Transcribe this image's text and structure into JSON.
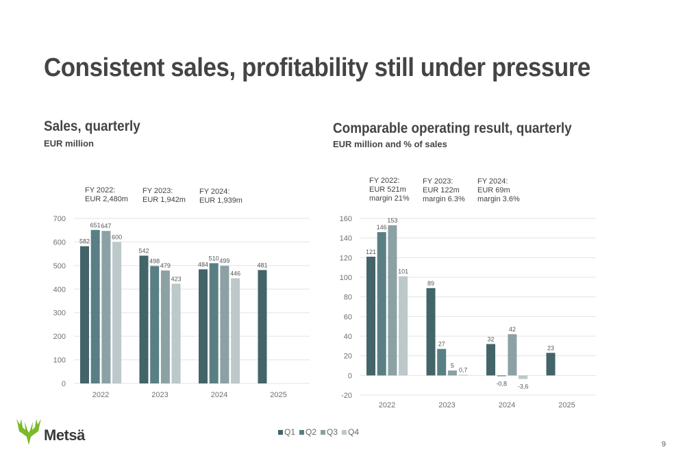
{
  "title": "Consistent sales, profitability still under pressure",
  "colors": {
    "Q1": "#436469",
    "Q2": "#597f84",
    "Q3": "#8ba1a4",
    "Q4": "#bcc8c9",
    "grid": "#e3e3e3"
  },
  "legend": [
    "Q1",
    "Q2",
    "Q3",
    "Q4"
  ],
  "logo": {
    "text": "Metsä",
    "icon": "elk-antler-icon"
  },
  "page_number": "9",
  "chart_data": [
    {
      "type": "bar",
      "title": "Sales, quarterly",
      "subtitle": "EUR million",
      "categories": [
        "2022",
        "2023",
        "2024",
        "2025"
      ],
      "series": [
        {
          "name": "Q1",
          "values": [
            582,
            542,
            484,
            481
          ]
        },
        {
          "name": "Q2",
          "values": [
            651,
            498,
            510,
            null
          ]
        },
        {
          "name": "Q3",
          "values": [
            647,
            479,
            499,
            null
          ]
        },
        {
          "name": "Q4",
          "values": [
            600,
            423,
            446,
            null
          ]
        }
      ],
      "data_labels": {
        "Q1": [
          "582",
          "542",
          "484",
          "481"
        ],
        "Q2": [
          "651",
          "498",
          "510",
          null
        ],
        "Q3": [
          "647",
          "479",
          "499",
          null
        ],
        "Q4": [
          "600",
          "423",
          "446",
          null
        ]
      },
      "ylim": [
        0,
        700
      ],
      "yticks": [
        "0",
        "100",
        "200",
        "300",
        "400",
        "500",
        "600",
        "700"
      ],
      "grid": true,
      "annotations": [
        {
          "lines": [
            "FY 2022:",
            "EUR 2,480m"
          ]
        },
        {
          "lines": [
            "FY 2023:",
            "EUR 1,942m"
          ]
        },
        {
          "lines": [
            "FY 2024:",
            "EUR 1,939m"
          ]
        }
      ]
    },
    {
      "type": "bar",
      "title": "Comparable operating result, quarterly",
      "subtitle": "EUR million and % of sales",
      "categories": [
        "2022",
        "2023",
        "2024",
        "2025"
      ],
      "series": [
        {
          "name": "Q1",
          "values": [
            121,
            89,
            32,
            23
          ]
        },
        {
          "name": "Q2",
          "values": [
            146,
            27,
            -0.8,
            null
          ]
        },
        {
          "name": "Q3",
          "values": [
            153,
            5,
            42,
            null
          ]
        },
        {
          "name": "Q4",
          "values": [
            101,
            0.7,
            -3.6,
            null
          ]
        }
      ],
      "data_labels": {
        "Q1": [
          "121",
          "89",
          "32",
          "23"
        ],
        "Q2": [
          "146",
          "27",
          "-0,8",
          null
        ],
        "Q3": [
          "153",
          "5",
          "42",
          null
        ],
        "Q4": [
          "101",
          "0,7",
          "-3,6",
          null
        ]
      },
      "ylim": [
        -20,
        160
      ],
      "yticks": [
        "-20",
        "0",
        "20",
        "40",
        "60",
        "80",
        "100",
        "120",
        "140",
        "160"
      ],
      "grid": true,
      "annotations": [
        {
          "lines": [
            "FY 2022:",
            "EUR 521m",
            "margin 21%"
          ]
        },
        {
          "lines": [
            "FY 2023:",
            "EUR 122m",
            "margin 6.3%"
          ]
        },
        {
          "lines": [
            "FY 2024:",
            "EUR 69m",
            "margin 3.6%"
          ]
        }
      ]
    }
  ]
}
